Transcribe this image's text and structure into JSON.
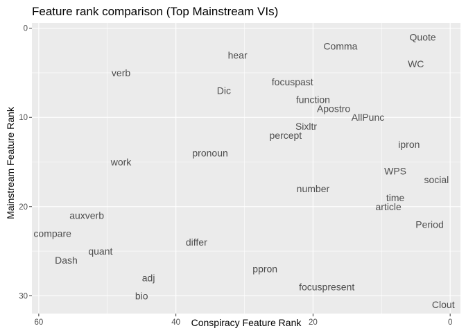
{
  "chart_data": {
    "type": "scatter",
    "title": "Feature rank comparison (Top Mainstream VIs)",
    "xlabel": "Conspiracy Feature Rank",
    "ylabel": "Mainstream Feature Rank",
    "x_reversed": true,
    "y_reversed": true,
    "xlim": [
      61,
      -1.5
    ],
    "ylim": [
      -0.6,
      32
    ],
    "x_ticks": [
      60,
      40,
      20,
      0
    ],
    "y_ticks": [
      0,
      10,
      20,
      30
    ],
    "grid": true,
    "background": "#ebebeb",
    "grid_color": "#ffffff",
    "text_color": "#4d4d4d",
    "points": [
      {
        "label": "Quote",
        "x": 4,
        "y": 1
      },
      {
        "label": "Comma",
        "x": 16,
        "y": 2
      },
      {
        "label": "hear",
        "x": 31,
        "y": 3
      },
      {
        "label": "WC",
        "x": 5,
        "y": 4
      },
      {
        "label": "verb",
        "x": 48,
        "y": 5
      },
      {
        "label": "focuspast",
        "x": 23,
        "y": 6
      },
      {
        "label": "Dic",
        "x": 33,
        "y": 7
      },
      {
        "label": "function",
        "x": 20,
        "y": 8
      },
      {
        "label": "Apostro",
        "x": 17,
        "y": 9
      },
      {
        "label": "AllPunc",
        "x": 12,
        "y": 10
      },
      {
        "label": "Sixltr",
        "x": 21,
        "y": 11
      },
      {
        "label": "percept",
        "x": 24,
        "y": 12
      },
      {
        "label": "ipron",
        "x": 6,
        "y": 13
      },
      {
        "label": "pronoun",
        "x": 35,
        "y": 14
      },
      {
        "label": "work",
        "x": 48,
        "y": 15
      },
      {
        "label": "WPS",
        "x": 8,
        "y": 16
      },
      {
        "label": "social",
        "x": 2,
        "y": 17
      },
      {
        "label": "number",
        "x": 20,
        "y": 18
      },
      {
        "label": "time",
        "x": 8,
        "y": 19
      },
      {
        "label": "article",
        "x": 9,
        "y": 20
      },
      {
        "label": "auxverb",
        "x": 53,
        "y": 21
      },
      {
        "label": "Period",
        "x": 3,
        "y": 22
      },
      {
        "label": "compare",
        "x": 58,
        "y": 23
      },
      {
        "label": "differ",
        "x": 37,
        "y": 24
      },
      {
        "label": "quant",
        "x": 51,
        "y": 25
      },
      {
        "label": "Dash",
        "x": 56,
        "y": 26
      },
      {
        "label": "ppron",
        "x": 27,
        "y": 27
      },
      {
        "label": "adj",
        "x": 44,
        "y": 28
      },
      {
        "label": "focuspresent",
        "x": 18,
        "y": 29
      },
      {
        "label": "bio",
        "x": 45,
        "y": 30
      },
      {
        "label": "Clout",
        "x": 1,
        "y": 31
      }
    ]
  }
}
